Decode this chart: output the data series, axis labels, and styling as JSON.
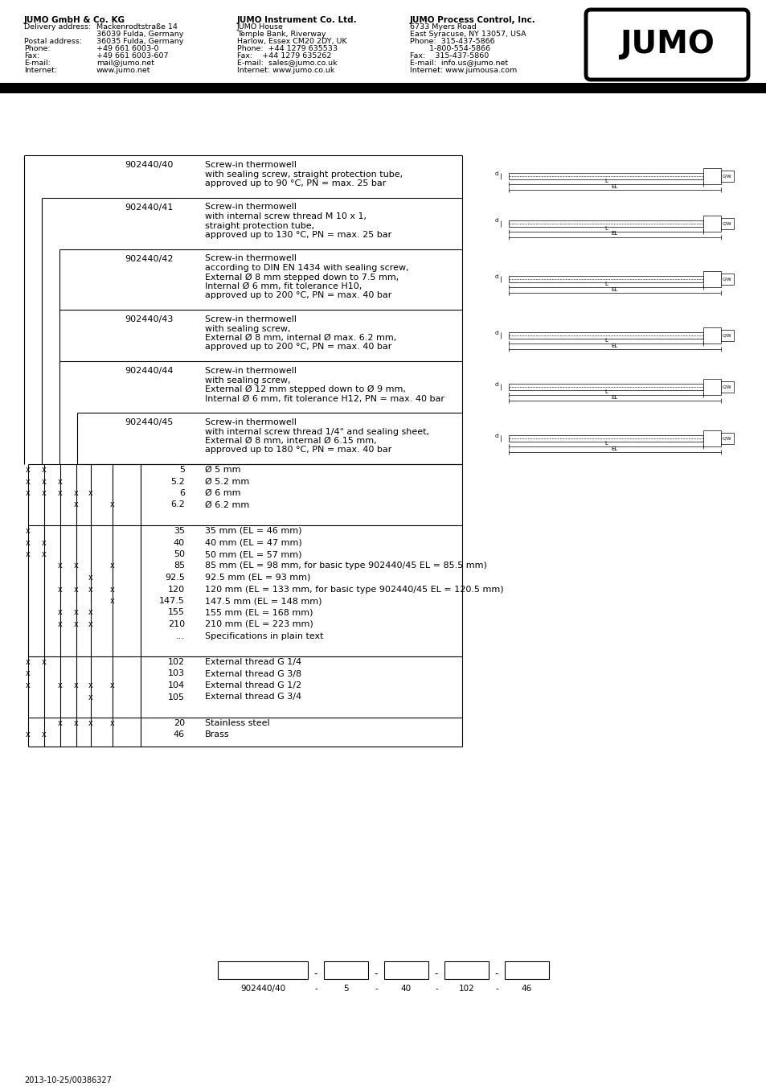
{
  "header_col1_title": "JUMO GmbH & Co. KG",
  "header_col1_rows": [
    [
      "Delivery address:",
      "Mackenrodtstraße 14"
    ],
    [
      "",
      "36039 Fulda, Germany"
    ],
    [
      "Postal address:",
      "36035 Fulda, Germany"
    ],
    [
      "Phone:",
      "+49 661 6003-0"
    ],
    [
      "Fax:",
      "+49 661 6003-607"
    ],
    [
      "E-mail:",
      "mail@jumo.net"
    ],
    [
      "Internet:",
      "www.jumo.net"
    ]
  ],
  "header_col2_title": "JUMO Instrument Co. Ltd.",
  "header_col2_rows": [
    "JUMO House",
    "Temple Bank, Riverway",
    "Harlow, Essex CM20 2DY, UK",
    "Phone:  +44 1279 635533",
    "Fax:    +44 1279 635262",
    "E-mail:  sales@jumo.co.uk",
    "Internet: www.jumo.co.uk"
  ],
  "header_col3_title": "JUMO Process Control, Inc.",
  "header_col3_rows": [
    "6733 Myers Road",
    "East Syracuse, NY 13057, USA",
    "Phone:  315-437-5866",
    "        1-800-554-5866",
    "Fax:    315-437-5860",
    "E-mail:  info.us@jumo.net",
    "Internet: www.jumousa.com"
  ],
  "products": [
    {
      "code": "902440/40",
      "nest": 0,
      "lines": [
        "Screw-in thermowell",
        "with sealing screw, straight protection tube,",
        "approved up to 90 °C, PN = max. 25 bar"
      ]
    },
    {
      "code": "902440/41",
      "nest": 1,
      "lines": [
        "Screw-in thermowell",
        "with internal screw thread M 10 x 1,",
        "straight protection tube,",
        "approved up to 130 °C, PN = max. 25 bar"
      ]
    },
    {
      "code": "902440/42",
      "nest": 2,
      "lines": [
        "Screw-in thermowell",
        "according to DIN EN 1434 with sealing screw,",
        "External Ø 8 mm stepped down to 7.5 mm,",
        "Internal Ø 6 mm, fit tolerance H10,",
        "approved up to 200 °C, PN = max. 40 bar"
      ]
    },
    {
      "code": "902440/43",
      "nest": 2,
      "lines": [
        "Screw-in thermowell",
        "with sealing screw,",
        "External Ø 8 mm, internal Ø max. 6.2 mm,",
        "approved up to 200 °C, PN = max. 40 bar"
      ]
    },
    {
      "code": "902440/44",
      "nest": 2,
      "lines": [
        "Screw-in thermowell",
        "with sealing screw,",
        "External Ø 12 mm stepped down to Ø 9 mm,",
        "Internal Ø 6 mm, fit tolerance H12, PN = max. 40 bar"
      ]
    },
    {
      "code": "902440/45",
      "nest": 3,
      "lines": [
        "Screw-in thermowell",
        "with internal screw thread 1/4\" and sealing sheet,",
        "External Ø 8 mm, internal Ø 6.15 mm,",
        "approved up to 180 °C, PN = max. 40 bar"
      ]
    }
  ],
  "sections": [
    {
      "rows": [
        {
          "code": "5",
          "desc": "Ø 5 mm",
          "m": [
            1,
            1,
            0,
            0,
            0,
            0
          ]
        },
        {
          "code": "5.2",
          "desc": "Ø 5.2 mm",
          "m": [
            1,
            1,
            1,
            0,
            0,
            0
          ]
        },
        {
          "code": "6",
          "desc": "Ø 6 mm",
          "m": [
            1,
            1,
            1,
            1,
            1,
            0
          ]
        },
        {
          "code": "6.2",
          "desc": "Ø 6.2 mm",
          "m": [
            0,
            0,
            0,
            1,
            0,
            1
          ]
        }
      ]
    },
    {
      "rows": [
        {
          "code": "35",
          "desc": "35 mm (EL = 46 mm)",
          "m": [
            1,
            0,
            0,
            0,
            0,
            0
          ]
        },
        {
          "code": "40",
          "desc": "40 mm (EL = 47 mm)",
          "m": [
            1,
            1,
            0,
            0,
            0,
            0
          ]
        },
        {
          "code": "50",
          "desc": "50 mm (EL = 57 mm)",
          "m": [
            1,
            1,
            0,
            0,
            0,
            0
          ]
        },
        {
          "code": "85",
          "desc": "85 mm (EL = 98 mm, for basic type 902440/45 EL = 85.5 mm)",
          "m": [
            0,
            0,
            1,
            1,
            0,
            1
          ]
        },
        {
          "code": "92.5",
          "desc": "92.5 mm (EL = 93 mm)",
          "m": [
            0,
            0,
            0,
            0,
            1,
            0
          ]
        },
        {
          "code": "120",
          "desc": "120 mm (EL = 133 mm, for basic type 902440/45 EL = 120.5 mm)",
          "m": [
            0,
            0,
            1,
            1,
            1,
            1
          ]
        },
        {
          "code": "147.5",
          "desc": "147.5 mm (EL = 148 mm)",
          "m": [
            0,
            0,
            0,
            0,
            0,
            1
          ]
        },
        {
          "code": "155",
          "desc": "155 mm (EL = 168 mm)",
          "m": [
            0,
            0,
            1,
            1,
            1,
            0
          ]
        },
        {
          "code": "210",
          "desc": "210 mm (EL = 223 mm)",
          "m": [
            0,
            0,
            1,
            1,
            1,
            0
          ]
        },
        {
          "code": "...",
          "desc": "Specifications in plain text",
          "m": [
            0,
            0,
            0,
            0,
            0,
            0
          ]
        }
      ]
    },
    {
      "rows": [
        {
          "code": "102",
          "desc": "External thread G 1/4",
          "m": [
            1,
            1,
            0,
            0,
            0,
            0
          ]
        },
        {
          "code": "103",
          "desc": "External thread G 3/8",
          "m": [
            1,
            0,
            0,
            0,
            0,
            0
          ]
        },
        {
          "code": "104",
          "desc": "External thread G 1/2",
          "m": [
            1,
            0,
            1,
            1,
            1,
            1
          ]
        },
        {
          "code": "105",
          "desc": "External thread G 3/4",
          "m": [
            0,
            0,
            0,
            0,
            1,
            0
          ]
        }
      ]
    },
    {
      "rows": [
        {
          "code": "20",
          "desc": "Stainless steel",
          "m": [
            0,
            0,
            1,
            1,
            1,
            1
          ]
        },
        {
          "code": "46",
          "desc": "Brass",
          "m": [
            1,
            1,
            0,
            0,
            0,
            0
          ]
        }
      ]
    }
  ],
  "order_boxes": [
    "902440/40",
    "5",
    "40",
    "102",
    "46"
  ],
  "footer": "2013-10-25/00386327"
}
